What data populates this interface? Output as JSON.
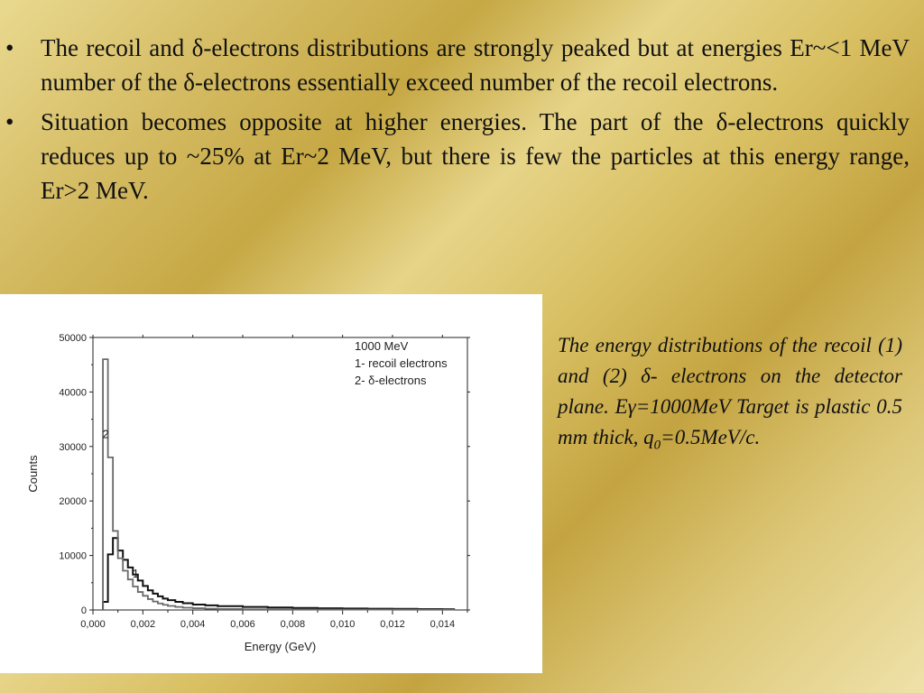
{
  "bullets": [
    {
      "text": "The recoil and δ-electrons distributions are strongly peaked but at energies Er~<1 MeV number of the δ-electrons essentially exceed number of the recoil electrons."
    },
    {
      "text": "Situation becomes opposite at higher energies. The part of the δ-electrons quickly reduces up to ~25% at Er~2 MeV, but there is few the particles at this energy range, Er>2 MeV."
    }
  ],
  "bullet_symbol": "•",
  "caption": {
    "line1": "The energy distributions of the recoil (1) and (2) δ- electrons on the detector plane. Eγ=1000MeV Target is plastic 0.5 mm thick, q",
    "sub": "0",
    "line2": "=0.5MeV/c."
  },
  "chart_data": {
    "type": "line",
    "step": true,
    "xlabel": "Energy (GeV)",
    "ylabel": "Counts",
    "xlim": [
      0,
      0.015
    ],
    "ylim": [
      0,
      50000
    ],
    "x_ticks": [
      "0,000",
      "0,002",
      "0,004",
      "0,006",
      "0,008",
      "0,010",
      "0,012",
      "0,014"
    ],
    "x_tick_values": [
      0,
      0.002,
      0.004,
      0.006,
      0.008,
      0.01,
      0.012,
      0.014
    ],
    "y_ticks": [
      "0",
      "10000",
      "20000",
      "30000",
      "40000",
      "50000"
    ],
    "y_tick_values": [
      0,
      10000,
      20000,
      30000,
      40000,
      50000
    ],
    "legend": {
      "lines": [
        "1000 MeV",
        "1- recoil electrons",
        "2- δ-electrons"
      ],
      "position": "top-right"
    },
    "annotations": [
      {
        "text": "2",
        "x": 0.00038,
        "y": 31500
      },
      {
        "text": "1",
        "x": 0.00158,
        "y": 6000
      }
    ],
    "series": [
      {
        "name": "1- recoil electrons",
        "color": "#111111",
        "bin_edges": [
          0.0004,
          0.0006,
          0.0008,
          0.001,
          0.0012,
          0.0014,
          0.0016,
          0.0018,
          0.002,
          0.0022,
          0.0024,
          0.0026,
          0.0028,
          0.003,
          0.0033,
          0.0036,
          0.004,
          0.0045,
          0.005,
          0.006,
          0.007,
          0.008,
          0.009,
          0.01,
          0.011,
          0.012,
          0.013,
          0.014,
          0.0145
        ],
        "values": [
          1500,
          10200,
          13200,
          10900,
          9200,
          7800,
          6500,
          5400,
          4400,
          3600,
          3000,
          2500,
          2100,
          1800,
          1500,
          1250,
          1000,
          850,
          700,
          550,
          450,
          380,
          320,
          270,
          230,
          200,
          170,
          150
        ]
      },
      {
        "name": "2- δ-electrons",
        "color": "#6a6a6a",
        "bin_edges": [
          0.0004,
          0.0006,
          0.0008,
          0.001,
          0.0012,
          0.0014,
          0.0016,
          0.0018,
          0.002,
          0.0022,
          0.0024,
          0.0026,
          0.0028,
          0.003,
          0.0033,
          0.0036,
          0.004,
          0.0045,
          0.005,
          0.006,
          0.007,
          0.008,
          0.01,
          0.012,
          0.0145
        ],
        "values": [
          46000,
          28000,
          14500,
          9500,
          7200,
          5600,
          4300,
          3300,
          2600,
          2000,
          1550,
          1200,
          950,
          750,
          560,
          420,
          320,
          240,
          180,
          130,
          100,
          80,
          60,
          50
        ]
      }
    ]
  }
}
